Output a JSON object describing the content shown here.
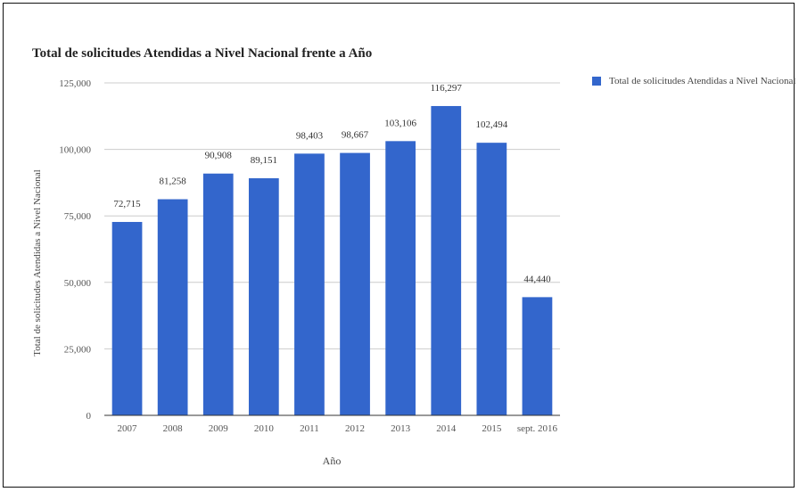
{
  "chart_data": {
    "type": "bar",
    "title": "Total de solicitudes Atendidas a Nivel Nacional frente a Año",
    "xlabel": "Año",
    "ylabel": "Total de solicitudes Atendidas a Nivel Nacional",
    "categories": [
      "2007",
      "2008",
      "2009",
      "2010",
      "2011",
      "2012",
      "2013",
      "2014",
      "2015",
      "sept. 2016"
    ],
    "series": [
      {
        "name": "Total de solicitudes Atendidas a Nivel Nacional",
        "values": [
          72715,
          81258,
          90908,
          89151,
          98403,
          98667,
          103106,
          116297,
          102494,
          44440
        ],
        "labels": [
          "72,715",
          "81,258",
          "90,908",
          "89,151",
          "98,403",
          "98,667",
          "103,106",
          "116,297",
          "102,494",
          "44,440"
        ]
      }
    ],
    "ylim": [
      0,
      125000
    ],
    "yticks": [
      0,
      25000,
      50000,
      75000,
      100000,
      125000
    ],
    "ytick_labels": [
      "0",
      "25,000",
      "50,000",
      "75,000",
      "100,000",
      "125,000"
    ],
    "grid": true,
    "legend_position": "right",
    "colors": {
      "bar": "#3366cc",
      "grid": "#cccccc",
      "baseline": "#333333"
    }
  }
}
